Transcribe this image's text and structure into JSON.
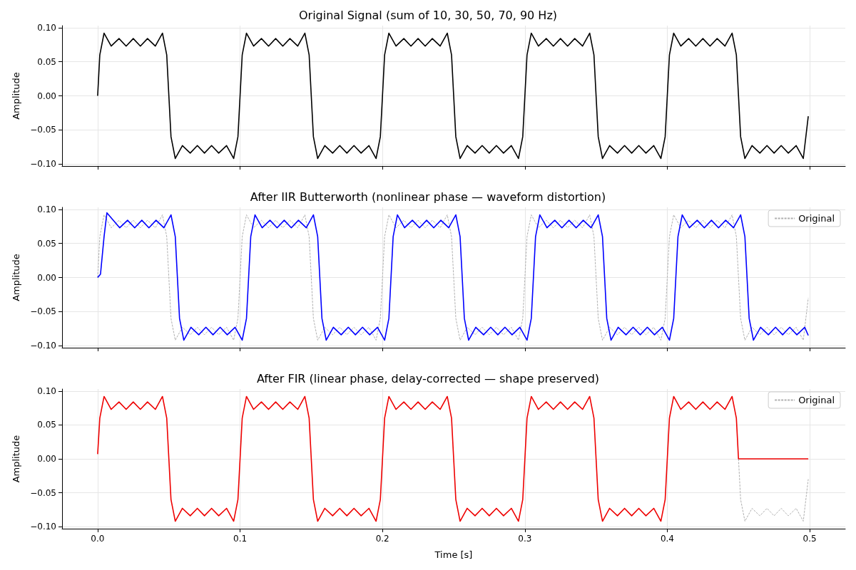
{
  "chart_data": [
    {
      "type": "line",
      "title": "Original Signal (sum of 10, 30, 50, 70, 90 Hz)",
      "ylabel": "Amplitude",
      "grid": true,
      "tick_labels": "y",
      "xlim": [
        -0.025,
        0.525
      ],
      "ylim": [
        -0.103,
        0.103
      ],
      "xticks": [
        0,
        0.1,
        0.2,
        0.3,
        0.4,
        0.5
      ],
      "yticks": [
        {
          "value": -0.1,
          "label": "−0.10"
        },
        {
          "value": -0.05,
          "label": "−0.05"
        },
        {
          "value": 0,
          "label": "0.00"
        },
        {
          "value": 0.05,
          "label": "0.05"
        },
        {
          "value": 0.1,
          "label": "0.10"
        }
      ],
      "series": [
        {
          "color": "#000000",
          "line_style": "solid",
          "x": [
            0,
            0.0015,
            0.0045,
            0.0095,
            0.015,
            0.02,
            0.025,
            0.03,
            0.035,
            0.0405,
            0.0455,
            0.0485,
            0.05,
            0.0515,
            0.0545,
            0.0595,
            0.065,
            0.07,
            0.075,
            0.08,
            0.085,
            0.0905,
            0.0955,
            0.0985,
            0.1,
            0.1015,
            0.1045,
            0.1095,
            0.115,
            0.12,
            0.125,
            0.13,
            0.135,
            0.1405,
            0.1455,
            0.1485,
            0.15,
            0.1515,
            0.1545,
            0.1595,
            0.165,
            0.17,
            0.175,
            0.18,
            0.185,
            0.1905,
            0.1955,
            0.1985,
            0.2,
            0.2015,
            0.2045,
            0.2095,
            0.215,
            0.22,
            0.225,
            0.23,
            0.235,
            0.2405,
            0.2455,
            0.2485,
            0.25,
            0.2515,
            0.2545,
            0.2595,
            0.265,
            0.27,
            0.275,
            0.28,
            0.285,
            0.2905,
            0.2955,
            0.2985,
            0.3,
            0.3015,
            0.3045,
            0.3095,
            0.315,
            0.32,
            0.325,
            0.33,
            0.335,
            0.3405,
            0.3455,
            0.3485,
            0.35,
            0.3515,
            0.3545,
            0.3595,
            0.365,
            0.37,
            0.375,
            0.38,
            0.385,
            0.3905,
            0.3955,
            0.3985,
            0.4,
            0.4015,
            0.4045,
            0.4095,
            0.415,
            0.42,
            0.425,
            0.43,
            0.435,
            0.4405,
            0.4455,
            0.4485,
            0.45,
            0.4515,
            0.4545,
            0.4595,
            0.465,
            0.47,
            0.475,
            0.48,
            0.485,
            0.4905,
            0.4955,
            0.499
          ],
          "values": [
            0,
            0.06,
            0.092,
            0.073,
            0.084,
            0.073,
            0.084,
            0.073,
            0.084,
            0.073,
            0.092,
            0.06,
            0,
            -0.06,
            -0.092,
            -0.073,
            -0.084,
            -0.073,
            -0.084,
            -0.073,
            -0.084,
            -0.073,
            -0.092,
            -0.06,
            0,
            0.06,
            0.092,
            0.073,
            0.084,
            0.073,
            0.084,
            0.073,
            0.084,
            0.073,
            0.092,
            0.06,
            0,
            -0.06,
            -0.092,
            -0.073,
            -0.084,
            -0.073,
            -0.084,
            -0.073,
            -0.084,
            -0.073,
            -0.092,
            -0.06,
            0,
            0.06,
            0.092,
            0.073,
            0.084,
            0.073,
            0.084,
            0.073,
            0.084,
            0.073,
            0.092,
            0.06,
            0,
            -0.06,
            -0.092,
            -0.073,
            -0.084,
            -0.073,
            -0.084,
            -0.073,
            -0.084,
            -0.073,
            -0.092,
            -0.06,
            0,
            0.06,
            0.092,
            0.073,
            0.084,
            0.073,
            0.084,
            0.073,
            0.084,
            0.073,
            0.092,
            0.06,
            0,
            -0.06,
            -0.092,
            -0.073,
            -0.084,
            -0.073,
            -0.084,
            -0.073,
            -0.084,
            -0.073,
            -0.092,
            -0.06,
            0,
            0.06,
            0.092,
            0.073,
            0.084,
            0.073,
            0.084,
            0.073,
            0.084,
            0.073,
            0.092,
            0.06,
            0,
            -0.06,
            -0.092,
            -0.073,
            -0.084,
            -0.073,
            -0.084,
            -0.073,
            -0.084,
            -0.073,
            -0.092,
            -0.03
          ]
        }
      ]
    },
    {
      "type": "line",
      "title": "After IIR Butterworth (nonlinear phase — waveform distortion)",
      "ylabel": "Amplitude",
      "grid": true,
      "tick_labels": "y",
      "legend": "top right",
      "xlim": [
        -0.025,
        0.525
      ],
      "ylim": [
        -0.103,
        0.103
      ],
      "xticks": [
        0,
        0.1,
        0.2,
        0.3,
        0.4,
        0.5
      ],
      "yticks": [
        {
          "value": -0.1,
          "label": "−0.10"
        },
        {
          "value": -0.05,
          "label": "−0.05"
        },
        {
          "value": 0,
          "label": "0.00"
        },
        {
          "value": 0.05,
          "label": "0.05"
        },
        {
          "value": 0.1,
          "label": "0.10"
        }
      ],
      "series": [
        {
          "name": "Original",
          "color": "#b0b0b0",
          "line_style": "dashed",
          "x": [
            0,
            0.0015,
            0.0045,
            0.0095,
            0.015,
            0.02,
            0.025,
            0.03,
            0.035,
            0.0405,
            0.0455,
            0.0485,
            0.05,
            0.0515,
            0.0545,
            0.0595,
            0.065,
            0.07,
            0.075,
            0.08,
            0.085,
            0.0905,
            0.0955,
            0.0985,
            0.1,
            0.1015,
            0.1045,
            0.1095,
            0.115,
            0.12,
            0.125,
            0.13,
            0.135,
            0.1405,
            0.1455,
            0.1485,
            0.15,
            0.1515,
            0.1545,
            0.1595,
            0.165,
            0.17,
            0.175,
            0.18,
            0.185,
            0.1905,
            0.1955,
            0.1985,
            0.2,
            0.2015,
            0.2045,
            0.2095,
            0.215,
            0.22,
            0.225,
            0.23,
            0.235,
            0.2405,
            0.2455,
            0.2485,
            0.25,
            0.2515,
            0.2545,
            0.2595,
            0.265,
            0.27,
            0.275,
            0.28,
            0.285,
            0.2905,
            0.2955,
            0.2985,
            0.3,
            0.3015,
            0.3045,
            0.3095,
            0.315,
            0.32,
            0.325,
            0.33,
            0.335,
            0.3405,
            0.3455,
            0.3485,
            0.35,
            0.3515,
            0.3545,
            0.3595,
            0.365,
            0.37,
            0.375,
            0.38,
            0.385,
            0.3905,
            0.3955,
            0.3985,
            0.4,
            0.4015,
            0.4045,
            0.4095,
            0.415,
            0.42,
            0.425,
            0.43,
            0.435,
            0.4405,
            0.4455,
            0.4485,
            0.45,
            0.4515,
            0.4545,
            0.4595,
            0.465,
            0.47,
            0.475,
            0.48,
            0.485,
            0.4905,
            0.4955,
            0.499
          ],
          "values": [
            0,
            0.06,
            0.092,
            0.073,
            0.084,
            0.073,
            0.084,
            0.073,
            0.084,
            0.073,
            0.092,
            0.06,
            0,
            -0.06,
            -0.092,
            -0.073,
            -0.084,
            -0.073,
            -0.084,
            -0.073,
            -0.084,
            -0.073,
            -0.092,
            -0.06,
            0,
            0.06,
            0.092,
            0.073,
            0.084,
            0.073,
            0.084,
            0.073,
            0.084,
            0.073,
            0.092,
            0.06,
            0,
            -0.06,
            -0.092,
            -0.073,
            -0.084,
            -0.073,
            -0.084,
            -0.073,
            -0.084,
            -0.073,
            -0.092,
            -0.06,
            0,
            0.06,
            0.092,
            0.073,
            0.084,
            0.073,
            0.084,
            0.073,
            0.084,
            0.073,
            0.092,
            0.06,
            0,
            -0.06,
            -0.092,
            -0.073,
            -0.084,
            -0.073,
            -0.084,
            -0.073,
            -0.084,
            -0.073,
            -0.092,
            -0.06,
            0,
            0.06,
            0.092,
            0.073,
            0.084,
            0.073,
            0.084,
            0.073,
            0.084,
            0.073,
            0.092,
            0.06,
            0,
            -0.06,
            -0.092,
            -0.073,
            -0.084,
            -0.073,
            -0.084,
            -0.073,
            -0.084,
            -0.073,
            -0.092,
            -0.06,
            0,
            0.06,
            0.092,
            0.073,
            0.084,
            0.073,
            0.084,
            0.073,
            0.084,
            0.073,
            0.092,
            0.06,
            0,
            -0.06,
            -0.092,
            -0.073,
            -0.084,
            -0.073,
            -0.084,
            -0.073,
            -0.084,
            -0.073,
            -0.092,
            -0.03
          ]
        },
        {
          "color": "#0000ff",
          "line_style": "solid",
          "x": [
            0,
            0.002,
            0.0045,
            0.0065,
            0.0155,
            0.021,
            0.026,
            0.031,
            0.036,
            0.041,
            0.0465,
            0.0515,
            0.0545,
            0.056,
            0.0575,
            0.0605,
            0.0655,
            0.071,
            0.076,
            0.081,
            0.086,
            0.091,
            0.0965,
            0.1015,
            0.1045,
            0.106,
            0.1075,
            0.1105,
            0.1155,
            0.121,
            0.126,
            0.131,
            0.136,
            0.141,
            0.1465,
            0.1515,
            0.1545,
            0.156,
            0.1575,
            0.1605,
            0.1655,
            0.171,
            0.176,
            0.181,
            0.186,
            0.191,
            0.1965,
            0.2015,
            0.2045,
            0.206,
            0.2075,
            0.2105,
            0.2155,
            0.221,
            0.226,
            0.231,
            0.236,
            0.241,
            0.2465,
            0.2515,
            0.2545,
            0.256,
            0.2575,
            0.2605,
            0.2655,
            0.271,
            0.276,
            0.281,
            0.286,
            0.291,
            0.2965,
            0.3015,
            0.3045,
            0.306,
            0.3075,
            0.3105,
            0.3155,
            0.321,
            0.326,
            0.331,
            0.336,
            0.341,
            0.3465,
            0.3515,
            0.3545,
            0.356,
            0.3575,
            0.3605,
            0.3655,
            0.371,
            0.376,
            0.381,
            0.386,
            0.391,
            0.3965,
            0.4015,
            0.4045,
            0.406,
            0.4075,
            0.4105,
            0.4155,
            0.421,
            0.426,
            0.431,
            0.436,
            0.441,
            0.4465,
            0.4515,
            0.4545,
            0.456,
            0.4575,
            0.4605,
            0.4655,
            0.471,
            0.476,
            0.481,
            0.486,
            0.491,
            0.4965,
            0.499
          ],
          "values": [
            0,
            0.005,
            0.06,
            0.095,
            0.073,
            0.084,
            0.073,
            0.084,
            0.073,
            0.084,
            0.073,
            0.092,
            0.06,
            0,
            -0.06,
            -0.092,
            -0.073,
            -0.084,
            -0.073,
            -0.084,
            -0.073,
            -0.084,
            -0.073,
            -0.092,
            -0.06,
            0,
            0.06,
            0.092,
            0.073,
            0.084,
            0.073,
            0.084,
            0.073,
            0.084,
            0.073,
            0.092,
            0.06,
            0,
            -0.06,
            -0.092,
            -0.073,
            -0.084,
            -0.073,
            -0.084,
            -0.073,
            -0.084,
            -0.073,
            -0.092,
            -0.06,
            0,
            0.06,
            0.092,
            0.073,
            0.084,
            0.073,
            0.084,
            0.073,
            0.084,
            0.073,
            0.092,
            0.06,
            0,
            -0.06,
            -0.092,
            -0.073,
            -0.084,
            -0.073,
            -0.084,
            -0.073,
            -0.084,
            -0.073,
            -0.092,
            -0.06,
            0,
            0.06,
            0.092,
            0.073,
            0.084,
            0.073,
            0.084,
            0.073,
            0.084,
            0.073,
            0.092,
            0.06,
            0,
            -0.06,
            -0.092,
            -0.073,
            -0.084,
            -0.073,
            -0.084,
            -0.073,
            -0.084,
            -0.073,
            -0.092,
            -0.06,
            0,
            0.06,
            0.092,
            0.073,
            0.084,
            0.073,
            0.084,
            0.073,
            0.084,
            0.073,
            0.092,
            0.06,
            0,
            -0.06,
            -0.092,
            -0.073,
            -0.084,
            -0.073,
            -0.084,
            -0.073,
            -0.084,
            -0.073,
            -0.085
          ]
        }
      ]
    },
    {
      "type": "line",
      "title": "After FIR (linear phase, delay-corrected — shape preserved)",
      "xlabel": "Time [s]",
      "ylabel": "Amplitude",
      "grid": true,
      "legend": "top right",
      "xlim": [
        -0.025,
        0.525
      ],
      "ylim": [
        -0.103,
        0.103
      ],
      "xticks": [
        {
          "value": 0,
          "label": "0.0"
        },
        {
          "value": 0.1,
          "label": "0.1"
        },
        {
          "value": 0.2,
          "label": "0.2"
        },
        {
          "value": 0.3,
          "label": "0.3"
        },
        {
          "value": 0.4,
          "label": "0.4"
        },
        {
          "value": 0.5,
          "label": "0.5"
        }
      ],
      "yticks": [
        {
          "value": -0.1,
          "label": "−0.10"
        },
        {
          "value": -0.05,
          "label": "−0.05"
        },
        {
          "value": 0,
          "label": "0.00"
        },
        {
          "value": 0.05,
          "label": "0.05"
        },
        {
          "value": 0.1,
          "label": "0.10"
        }
      ],
      "series": [
        {
          "name": "Original",
          "color": "#b0b0b0",
          "line_style": "dashed",
          "x": [
            0.45,
            0.4515,
            0.4545,
            0.4595,
            0.465,
            0.47,
            0.475,
            0.48,
            0.485,
            0.4905,
            0.4955,
            0.499
          ],
          "values": [
            0,
            -0.06,
            -0.092,
            -0.073,
            -0.084,
            -0.073,
            -0.084,
            -0.073,
            -0.084,
            -0.073,
            -0.092,
            -0.03
          ]
        },
        {
          "color": "#ee0000",
          "line_style": "solid",
          "x": [
            0,
            0.0015,
            0.0045,
            0.0095,
            0.015,
            0.02,
            0.025,
            0.03,
            0.035,
            0.0405,
            0.0455,
            0.0485,
            0.05,
            0.0515,
            0.0545,
            0.0595,
            0.065,
            0.07,
            0.075,
            0.08,
            0.085,
            0.0905,
            0.0955,
            0.0985,
            0.1,
            0.1015,
            0.1045,
            0.1095,
            0.115,
            0.12,
            0.125,
            0.13,
            0.135,
            0.1405,
            0.1455,
            0.1485,
            0.15,
            0.1515,
            0.1545,
            0.1595,
            0.165,
            0.17,
            0.175,
            0.18,
            0.185,
            0.1905,
            0.1955,
            0.1985,
            0.2,
            0.2015,
            0.2045,
            0.2095,
            0.215,
            0.22,
            0.225,
            0.23,
            0.235,
            0.2405,
            0.2455,
            0.2485,
            0.25,
            0.2515,
            0.2545,
            0.2595,
            0.265,
            0.27,
            0.275,
            0.28,
            0.285,
            0.2905,
            0.2955,
            0.2985,
            0.3,
            0.3015,
            0.3045,
            0.3095,
            0.315,
            0.32,
            0.325,
            0.33,
            0.335,
            0.3405,
            0.3455,
            0.3485,
            0.35,
            0.3515,
            0.3545,
            0.3595,
            0.365,
            0.37,
            0.375,
            0.38,
            0.385,
            0.3905,
            0.3955,
            0.3985,
            0.4,
            0.4015,
            0.4045,
            0.4095,
            0.415,
            0.42,
            0.425,
            0.43,
            0.435,
            0.4405,
            0.4455,
            0.4485,
            0.45,
            0.499
          ],
          "values": [
            0.007,
            0.06,
            0.092,
            0.073,
            0.084,
            0.073,
            0.084,
            0.073,
            0.084,
            0.073,
            0.092,
            0.06,
            0,
            -0.06,
            -0.092,
            -0.073,
            -0.084,
            -0.073,
            -0.084,
            -0.073,
            -0.084,
            -0.073,
            -0.092,
            -0.06,
            0,
            0.06,
            0.092,
            0.073,
            0.084,
            0.073,
            0.084,
            0.073,
            0.084,
            0.073,
            0.092,
            0.06,
            0,
            -0.06,
            -0.092,
            -0.073,
            -0.084,
            -0.073,
            -0.084,
            -0.073,
            -0.084,
            -0.073,
            -0.092,
            -0.06,
            0,
            0.06,
            0.092,
            0.073,
            0.084,
            0.073,
            0.084,
            0.073,
            0.084,
            0.073,
            0.092,
            0.06,
            0,
            -0.06,
            -0.092,
            -0.073,
            -0.084,
            -0.073,
            -0.084,
            -0.073,
            -0.084,
            -0.073,
            -0.092,
            -0.06,
            0,
            0.06,
            0.092,
            0.073,
            0.084,
            0.073,
            0.084,
            0.073,
            0.084,
            0.073,
            0.092,
            0.06,
            0,
            -0.06,
            -0.092,
            -0.073,
            -0.084,
            -0.073,
            -0.084,
            -0.073,
            -0.084,
            -0.073,
            -0.092,
            -0.06,
            0,
            0.06,
            0.092,
            0.073,
            0.084,
            0.073,
            0.084,
            0.073,
            0.084,
            0.073,
            0.092,
            0.06,
            0,
            0
          ]
        }
      ]
    }
  ]
}
